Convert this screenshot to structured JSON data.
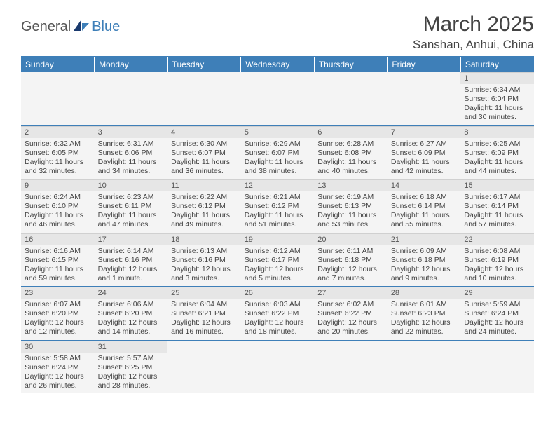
{
  "logo": {
    "text1": "General",
    "text2": "Blue"
  },
  "title": "March 2025",
  "location": "Sanshan, Anhui, China",
  "colors": {
    "accent": "#3e7fb8",
    "header_bg": "#3e7fb8",
    "daynum_bg": "#e6e6e6",
    "cell_bg": "#f4f4f4"
  },
  "weekdays": [
    "Sunday",
    "Monday",
    "Tuesday",
    "Wednesday",
    "Thursday",
    "Friday",
    "Saturday"
  ],
  "weeks": [
    [
      {
        "n": "",
        "empty": true
      },
      {
        "n": "",
        "empty": true
      },
      {
        "n": "",
        "empty": true
      },
      {
        "n": "",
        "empty": true
      },
      {
        "n": "",
        "empty": true
      },
      {
        "n": "",
        "empty": true
      },
      {
        "n": "1",
        "sr": "Sunrise: 6:34 AM",
        "ss": "Sunset: 6:04 PM",
        "dl": "Daylight: 11 hours and 30 minutes."
      }
    ],
    [
      {
        "n": "2",
        "sr": "Sunrise: 6:32 AM",
        "ss": "Sunset: 6:05 PM",
        "dl": "Daylight: 11 hours and 32 minutes."
      },
      {
        "n": "3",
        "sr": "Sunrise: 6:31 AM",
        "ss": "Sunset: 6:06 PM",
        "dl": "Daylight: 11 hours and 34 minutes."
      },
      {
        "n": "4",
        "sr": "Sunrise: 6:30 AM",
        "ss": "Sunset: 6:07 PM",
        "dl": "Daylight: 11 hours and 36 minutes."
      },
      {
        "n": "5",
        "sr": "Sunrise: 6:29 AM",
        "ss": "Sunset: 6:07 PM",
        "dl": "Daylight: 11 hours and 38 minutes."
      },
      {
        "n": "6",
        "sr": "Sunrise: 6:28 AM",
        "ss": "Sunset: 6:08 PM",
        "dl": "Daylight: 11 hours and 40 minutes."
      },
      {
        "n": "7",
        "sr": "Sunrise: 6:27 AM",
        "ss": "Sunset: 6:09 PM",
        "dl": "Daylight: 11 hours and 42 minutes."
      },
      {
        "n": "8",
        "sr": "Sunrise: 6:25 AM",
        "ss": "Sunset: 6:09 PM",
        "dl": "Daylight: 11 hours and 44 minutes."
      }
    ],
    [
      {
        "n": "9",
        "sr": "Sunrise: 6:24 AM",
        "ss": "Sunset: 6:10 PM",
        "dl": "Daylight: 11 hours and 46 minutes."
      },
      {
        "n": "10",
        "sr": "Sunrise: 6:23 AM",
        "ss": "Sunset: 6:11 PM",
        "dl": "Daylight: 11 hours and 47 minutes."
      },
      {
        "n": "11",
        "sr": "Sunrise: 6:22 AM",
        "ss": "Sunset: 6:12 PM",
        "dl": "Daylight: 11 hours and 49 minutes."
      },
      {
        "n": "12",
        "sr": "Sunrise: 6:21 AM",
        "ss": "Sunset: 6:12 PM",
        "dl": "Daylight: 11 hours and 51 minutes."
      },
      {
        "n": "13",
        "sr": "Sunrise: 6:19 AM",
        "ss": "Sunset: 6:13 PM",
        "dl": "Daylight: 11 hours and 53 minutes."
      },
      {
        "n": "14",
        "sr": "Sunrise: 6:18 AM",
        "ss": "Sunset: 6:14 PM",
        "dl": "Daylight: 11 hours and 55 minutes."
      },
      {
        "n": "15",
        "sr": "Sunrise: 6:17 AM",
        "ss": "Sunset: 6:14 PM",
        "dl": "Daylight: 11 hours and 57 minutes."
      }
    ],
    [
      {
        "n": "16",
        "sr": "Sunrise: 6:16 AM",
        "ss": "Sunset: 6:15 PM",
        "dl": "Daylight: 11 hours and 59 minutes."
      },
      {
        "n": "17",
        "sr": "Sunrise: 6:14 AM",
        "ss": "Sunset: 6:16 PM",
        "dl": "Daylight: 12 hours and 1 minute."
      },
      {
        "n": "18",
        "sr": "Sunrise: 6:13 AM",
        "ss": "Sunset: 6:16 PM",
        "dl": "Daylight: 12 hours and 3 minutes."
      },
      {
        "n": "19",
        "sr": "Sunrise: 6:12 AM",
        "ss": "Sunset: 6:17 PM",
        "dl": "Daylight: 12 hours and 5 minutes."
      },
      {
        "n": "20",
        "sr": "Sunrise: 6:11 AM",
        "ss": "Sunset: 6:18 PM",
        "dl": "Daylight: 12 hours and 7 minutes."
      },
      {
        "n": "21",
        "sr": "Sunrise: 6:09 AM",
        "ss": "Sunset: 6:18 PM",
        "dl": "Daylight: 12 hours and 9 minutes."
      },
      {
        "n": "22",
        "sr": "Sunrise: 6:08 AM",
        "ss": "Sunset: 6:19 PM",
        "dl": "Daylight: 12 hours and 10 minutes."
      }
    ],
    [
      {
        "n": "23",
        "sr": "Sunrise: 6:07 AM",
        "ss": "Sunset: 6:20 PM",
        "dl": "Daylight: 12 hours and 12 minutes."
      },
      {
        "n": "24",
        "sr": "Sunrise: 6:06 AM",
        "ss": "Sunset: 6:20 PM",
        "dl": "Daylight: 12 hours and 14 minutes."
      },
      {
        "n": "25",
        "sr": "Sunrise: 6:04 AM",
        "ss": "Sunset: 6:21 PM",
        "dl": "Daylight: 12 hours and 16 minutes."
      },
      {
        "n": "26",
        "sr": "Sunrise: 6:03 AM",
        "ss": "Sunset: 6:22 PM",
        "dl": "Daylight: 12 hours and 18 minutes."
      },
      {
        "n": "27",
        "sr": "Sunrise: 6:02 AM",
        "ss": "Sunset: 6:22 PM",
        "dl": "Daylight: 12 hours and 20 minutes."
      },
      {
        "n": "28",
        "sr": "Sunrise: 6:01 AM",
        "ss": "Sunset: 6:23 PM",
        "dl": "Daylight: 12 hours and 22 minutes."
      },
      {
        "n": "29",
        "sr": "Sunrise: 5:59 AM",
        "ss": "Sunset: 6:24 PM",
        "dl": "Daylight: 12 hours and 24 minutes."
      }
    ],
    [
      {
        "n": "30",
        "sr": "Sunrise: 5:58 AM",
        "ss": "Sunset: 6:24 PM",
        "dl": "Daylight: 12 hours and 26 minutes."
      },
      {
        "n": "31",
        "sr": "Sunrise: 5:57 AM",
        "ss": "Sunset: 6:25 PM",
        "dl": "Daylight: 12 hours and 28 minutes."
      },
      {
        "n": "",
        "empty": true
      },
      {
        "n": "",
        "empty": true
      },
      {
        "n": "",
        "empty": true
      },
      {
        "n": "",
        "empty": true
      },
      {
        "n": "",
        "empty": true
      }
    ]
  ]
}
